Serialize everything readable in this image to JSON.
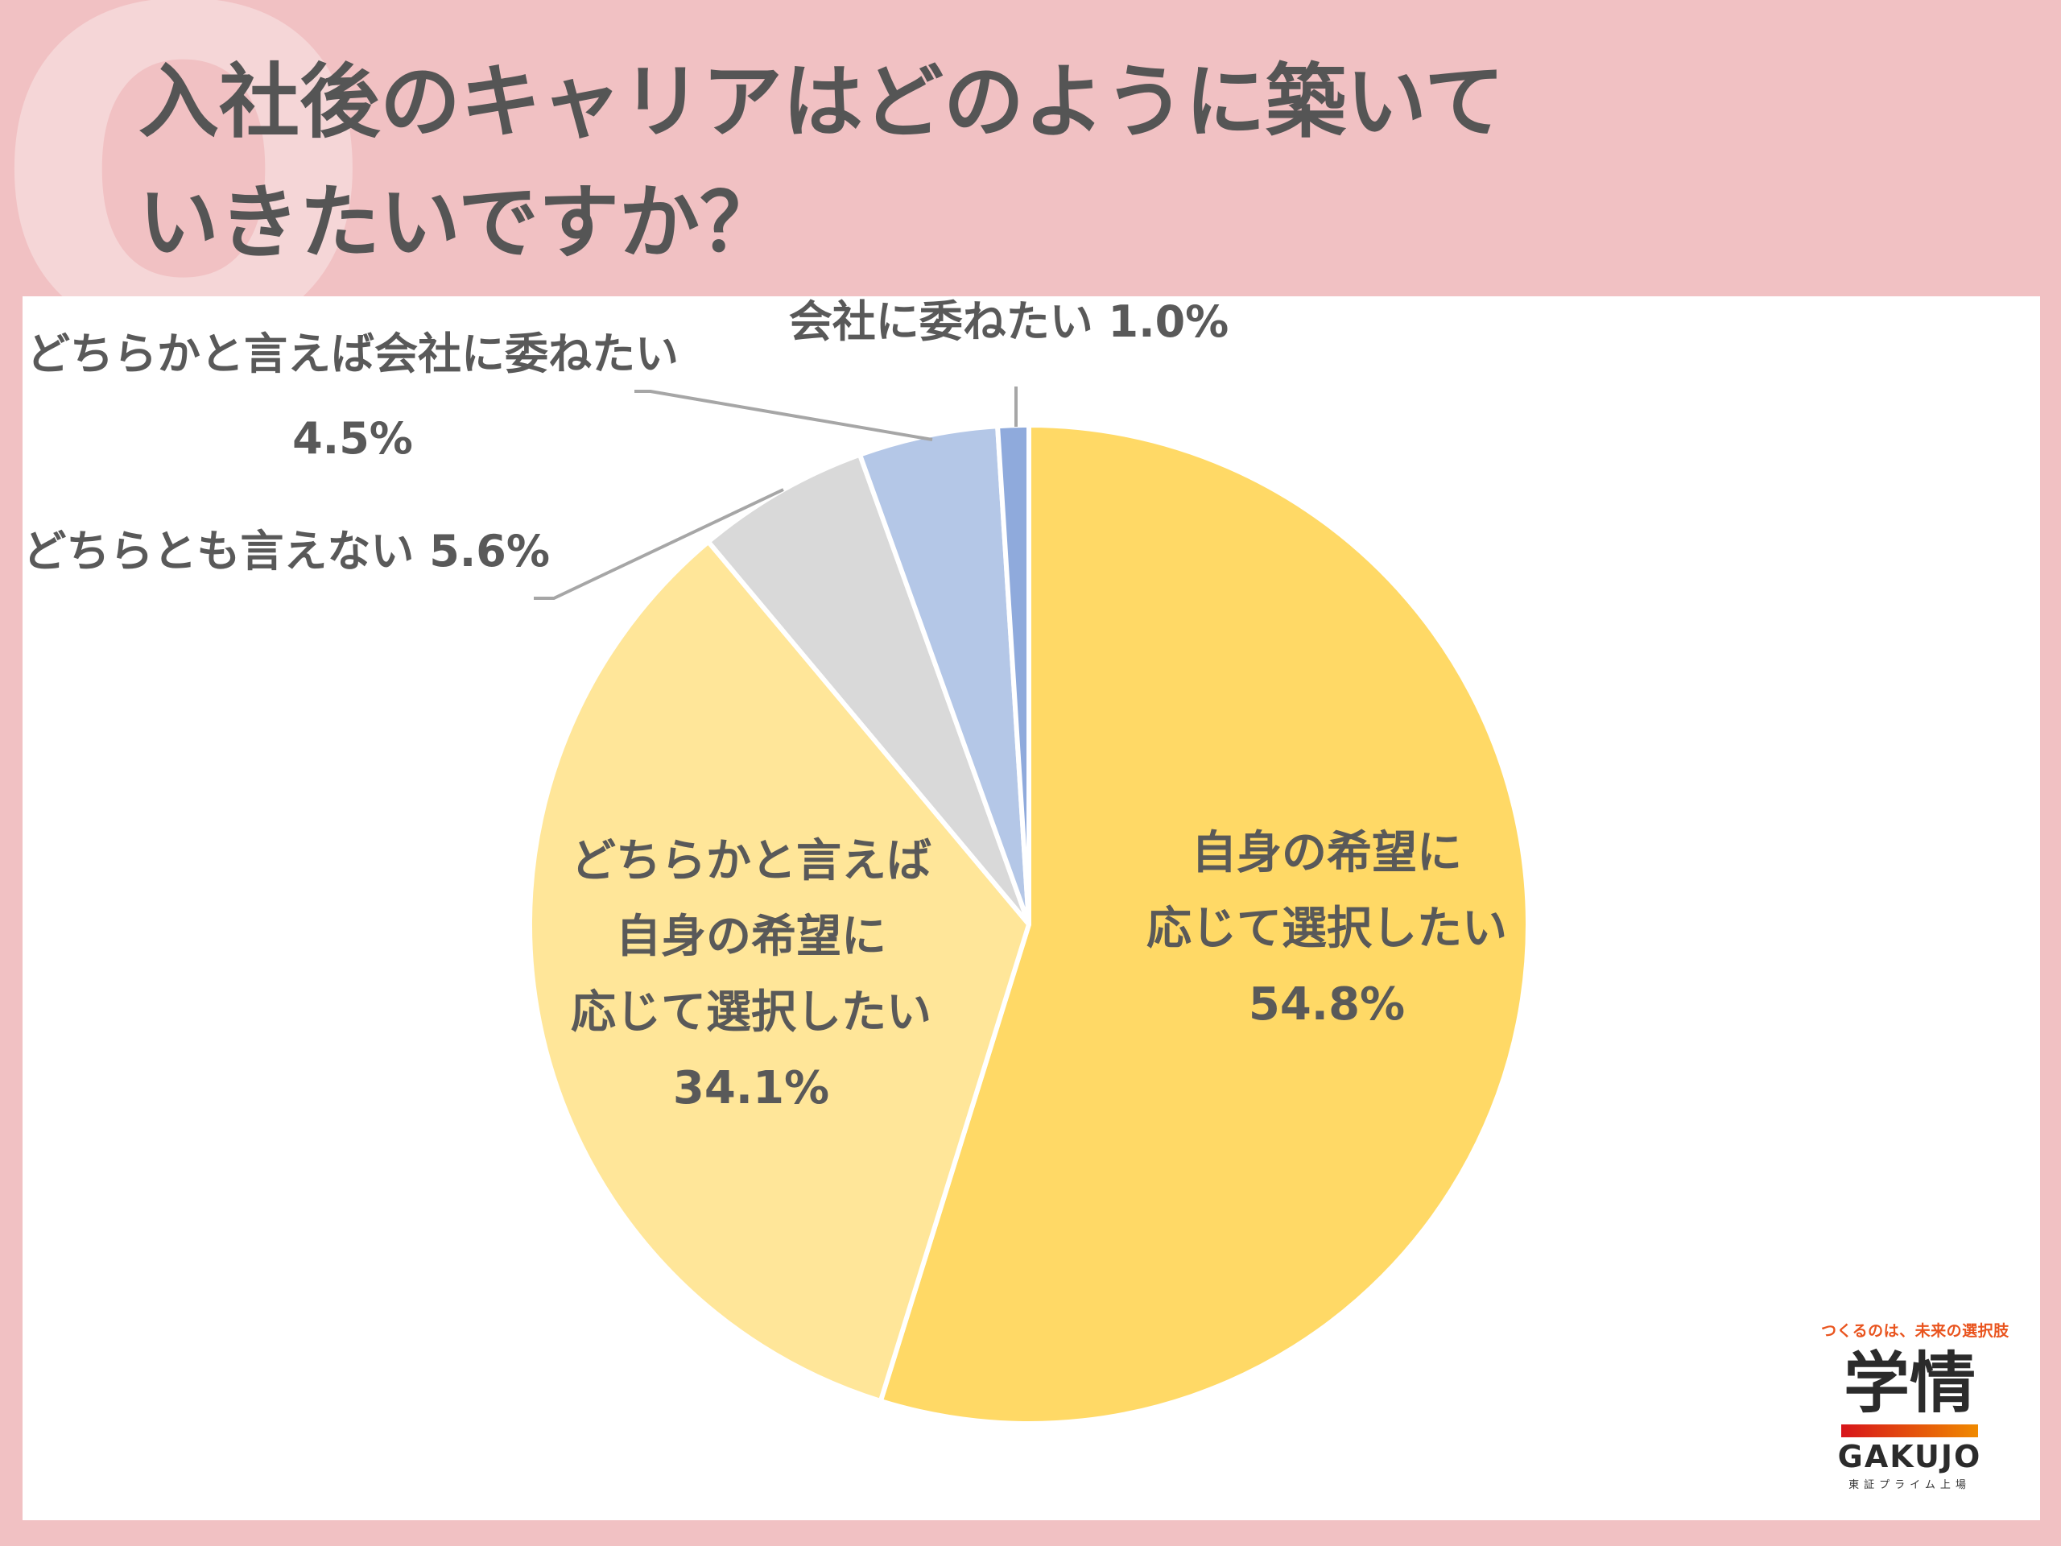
{
  "question": {
    "mark": "Q",
    "line1": "入社後のキャリアはどのように築いて",
    "line2": "いきたいですか？"
  },
  "chart_data": {
    "type": "pie",
    "start_angle_deg": 0,
    "direction": "clockwise",
    "slices": [
      {
        "lines": [
          "自身の希望に",
          "応じて選択したい"
        ],
        "value": 54.8,
        "value_label": "54.8%",
        "color": "#ffd966",
        "label_pos": "inside"
      },
      {
        "lines": [
          "どちらかと言えば",
          "自身の希望に",
          "応じて選択したい"
        ],
        "value": 34.1,
        "value_label": "34.1%",
        "color": "#ffe699",
        "label_pos": "inside"
      },
      {
        "lines": [
          "どちらとも言えない 5.6%"
        ],
        "value": 5.6,
        "value_label": "",
        "color": "#d9d9d9",
        "label_pos": "outside"
      },
      {
        "lines": [
          "どちらかと言えば会社に委ねたい",
          "4.5%"
        ],
        "value": 4.5,
        "value_label": "",
        "color": "#b4c7e7",
        "label_pos": "outside"
      },
      {
        "lines": [
          "会社に委ねたい 1.0%"
        ],
        "value": 1.0,
        "value_label": "",
        "color": "#8faadc",
        "label_pos": "outside"
      }
    ]
  },
  "logo": {
    "tagline": "つくるのは、未来の選択肢",
    "name_jp": "学情",
    "name_en": "GAKUJO",
    "sub": "東証プライム上場"
  }
}
